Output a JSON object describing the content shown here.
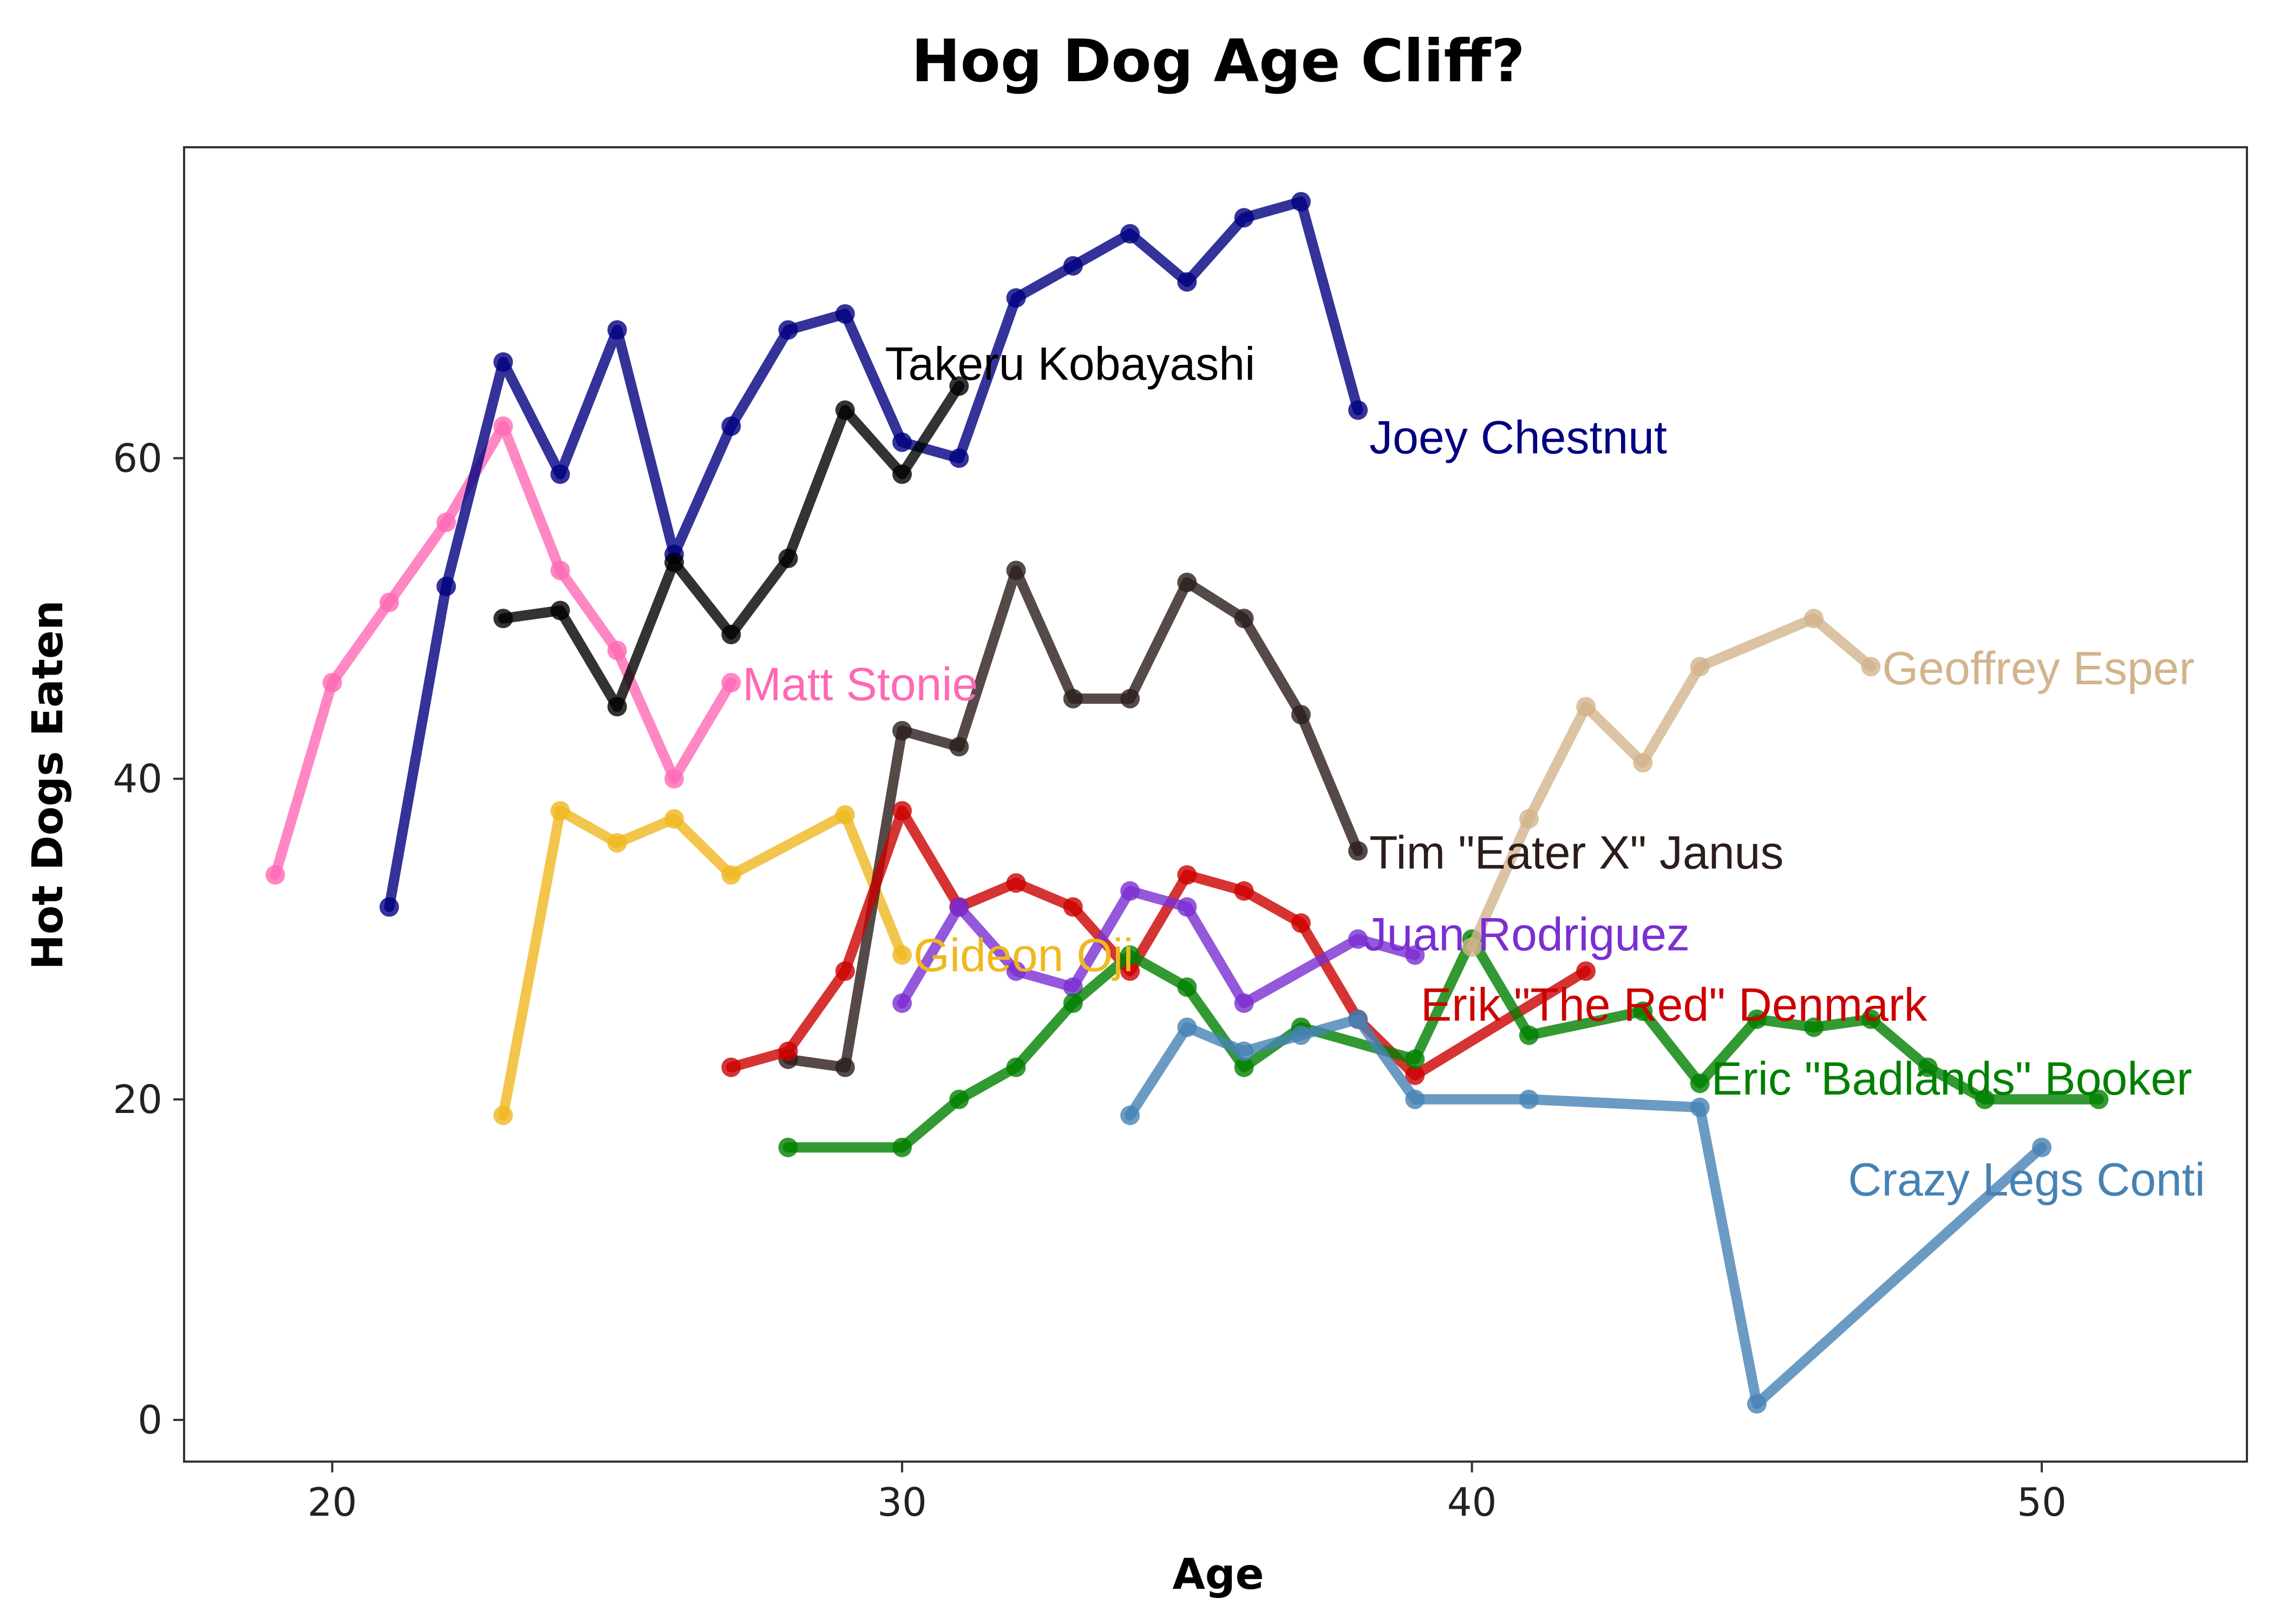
{
  "chart_data": {
    "type": "line",
    "title": "Hog Dog Age Cliff?",
    "xlabel": "Age",
    "ylabel": "Hot Dogs Eaten",
    "xlim": [
      17.4,
      53.6
    ],
    "ylim": [
      -2.6,
      79.4
    ],
    "xticks": [
      20,
      30,
      40,
      50
    ],
    "yticks": [
      0,
      20,
      40,
      60
    ],
    "grid": false,
    "legend": "none (direct labels)",
    "series": [
      {
        "name": "Matt Stonie",
        "color": "#ff69b4",
        "x": [
          19,
          20,
          21,
          22,
          23,
          24,
          25,
          26,
          27
        ],
        "y": [
          34,
          46,
          51,
          56,
          62,
          53,
          48,
          40,
          46
        ]
      },
      {
        "name": "Gideon Oji",
        "color": "#efb81f",
        "x": [
          23,
          24,
          25,
          26,
          27,
          29,
          30
        ],
        "y": [
          19,
          38,
          36,
          37.5,
          34,
          37.75,
          29
        ]
      },
      {
        "name": "Joey Chestnut",
        "color": "#000080",
        "x": [
          21,
          22,
          23,
          24,
          25,
          26,
          27,
          28,
          29,
          30,
          31,
          32,
          33,
          34,
          35,
          36,
          37,
          38
        ],
        "y": [
          32,
          52,
          66,
          59,
          68,
          54,
          62,
          68,
          69,
          61,
          60,
          70,
          72,
          74,
          71,
          75,
          76,
          63
        ]
      },
      {
        "name": "Takeru Kobayashi",
        "color": "#000000",
        "x": [
          23,
          24,
          25,
          26,
          27,
          28,
          29,
          30,
          31
        ],
        "y": [
          50,
          50.5,
          44.5,
          53.5,
          49,
          53.75,
          63,
          59,
          64.5
        ]
      },
      {
        "name": "Tim \"Eater X\" Janus",
        "color": "#2b1d1a",
        "x": [
          28,
          29,
          30,
          31,
          32,
          33,
          34,
          35,
          36,
          37,
          38
        ],
        "y": [
          22.5,
          22,
          43,
          42,
          53,
          45,
          45,
          52.25,
          50,
          44,
          35.5
        ]
      },
      {
        "name": "Erik \"The Red\" Denmark",
        "color": "#cc0000",
        "x": [
          27,
          28,
          29,
          30,
          31,
          32,
          33,
          34,
          35,
          36,
          37,
          38,
          39,
          42
        ],
        "y": [
          22,
          23,
          28,
          38,
          32,
          33.5,
          32,
          28,
          34,
          33,
          31,
          25,
          21.5,
          28
        ]
      },
      {
        "name": "Juan Rodriguez",
        "color": "#7b2ed1",
        "x": [
          30,
          31,
          32,
          33,
          34,
          35,
          36,
          38,
          39
        ],
        "y": [
          26,
          32,
          28,
          27,
          33,
          32,
          26,
          30,
          29
        ]
      },
      {
        "name": "Eric \"Badlands\" Booker",
        "color": "#008000",
        "x": [
          28,
          30,
          31,
          32,
          33,
          34,
          35,
          36,
          37,
          39,
          40,
          41,
          43,
          44,
          45,
          46,
          47,
          48,
          49,
          51
        ],
        "y": [
          17,
          17,
          20,
          22,
          26,
          29,
          27,
          22,
          24.5,
          22.5,
          30,
          24,
          25.5,
          21,
          25,
          24.5,
          25,
          22,
          20,
          20
        ]
      },
      {
        "name": "Crazy Legs Conti",
        "color": "#4682b4",
        "x": [
          34,
          35,
          36,
          37,
          38,
          39,
          41,
          44,
          45,
          50
        ],
        "y": [
          19,
          24.5,
          23,
          24,
          25,
          20,
          20,
          19.5,
          1,
          17
        ]
      },
      {
        "name": "Geoffrey Esper",
        "color": "#d2b48c",
        "x": [
          40,
          41,
          42,
          43,
          44,
          46,
          47
        ],
        "y": [
          29.5,
          37.5,
          44.5,
          41,
          47,
          50,
          47
        ]
      }
    ],
    "annotations": [
      {
        "text": "Joey Chestnut",
        "color": "#000080",
        "x": 38.2,
        "y": 60.3,
        "anchor": "start"
      },
      {
        "text": "Takeru Kobayashi",
        "color": "#000000",
        "x": 29.7,
        "y": 64.9,
        "anchor": "start"
      },
      {
        "text": "Matt Stonie",
        "color": "#ff69b4",
        "x": 27.2,
        "y": 44.9,
        "anchor": "start"
      },
      {
        "text": "Geoffrey Esper",
        "color": "#d2b48c",
        "x": 47.2,
        "y": 45.9,
        "anchor": "start"
      },
      {
        "text": "Tim \"Eater X\" Janus",
        "color": "#2b1d1a",
        "x": 38.2,
        "y": 34.4,
        "anchor": "start"
      },
      {
        "text": "Juan Rodriguez",
        "color": "#7b2ed1",
        "x": 38.1,
        "y": 29.3,
        "anchor": "start"
      },
      {
        "text": "Gideon Oji",
        "color": "#efb81f",
        "x": 30.2,
        "y": 28.0,
        "anchor": "start"
      },
      {
        "text": "Erik \"The Red\" Denmark",
        "color": "#cc0000",
        "x": 39.1,
        "y": 24.9,
        "anchor": "start"
      },
      {
        "text": "Eric \"Badlands\" Booker",
        "color": "#008000",
        "x": 44.2,
        "y": 20.3,
        "anchor": "start"
      },
      {
        "text": "Crazy Legs Conti",
        "color": "#4682b4",
        "x": 46.6,
        "y": 14.0,
        "anchor": "start"
      }
    ]
  }
}
